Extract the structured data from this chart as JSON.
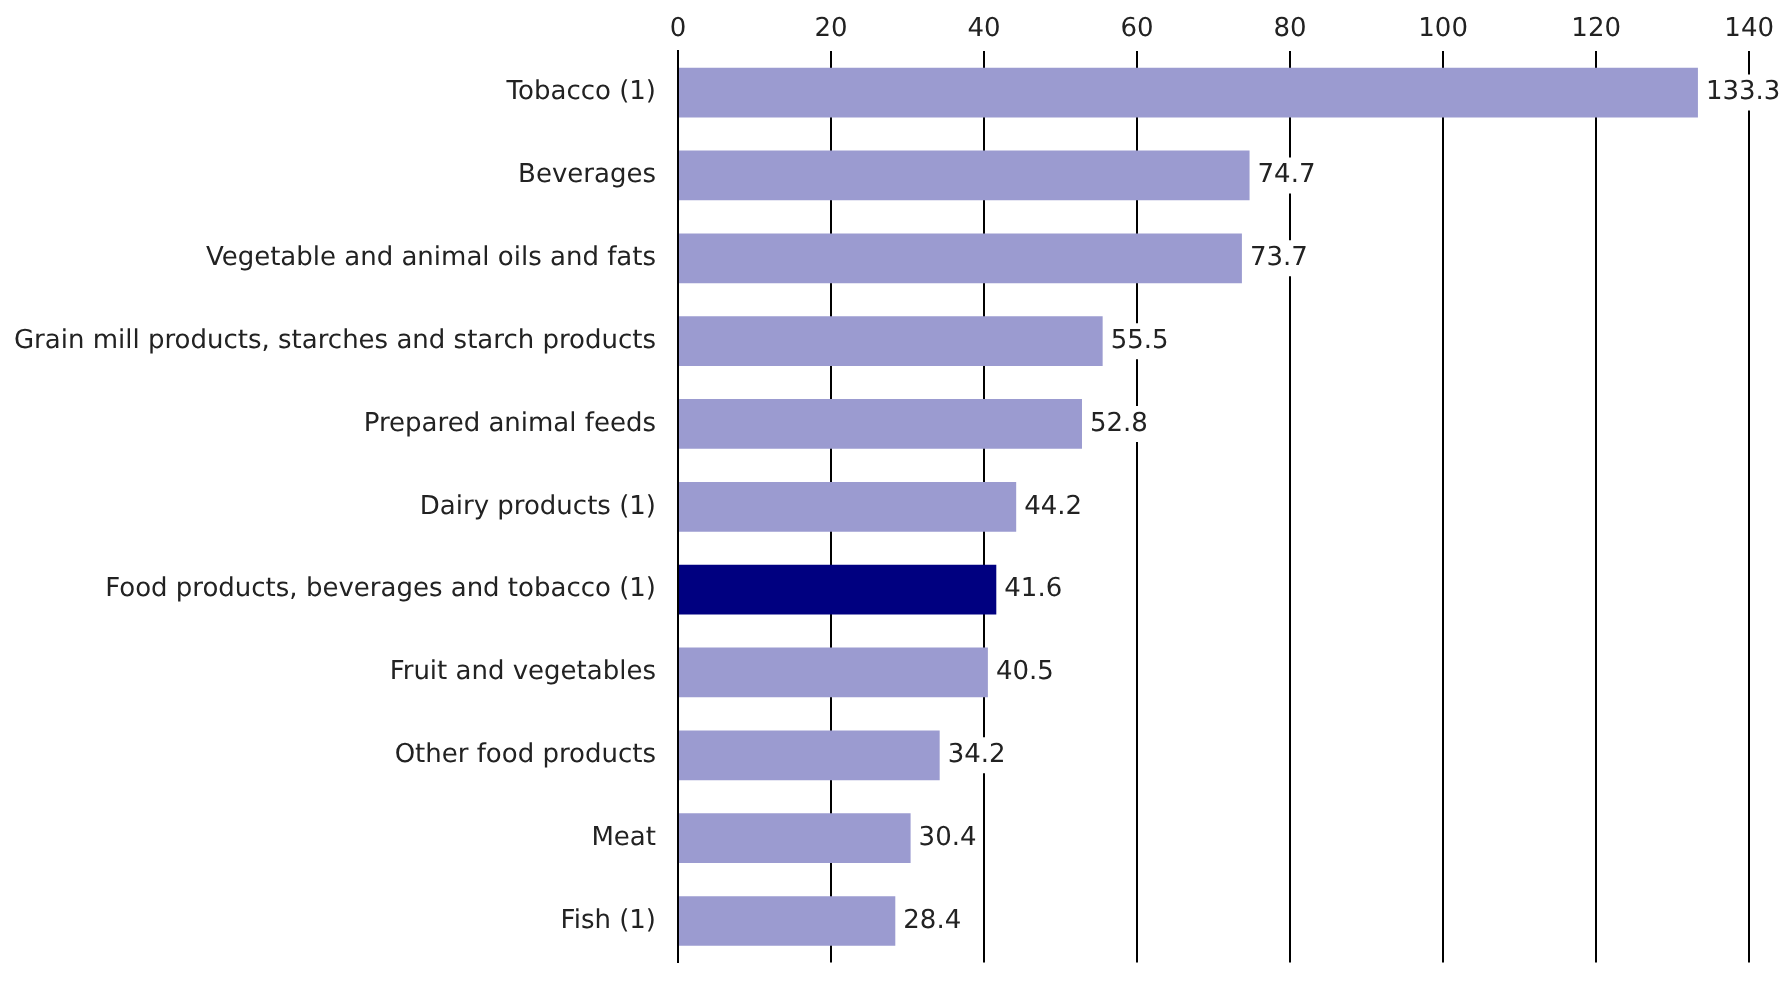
{
  "chart_data": {
    "type": "bar",
    "orientation": "horizontal",
    "categories": [
      "Tobacco (1)",
      "Beverages",
      "Vegetable and animal oils and fats",
      "Grain mill products, starches and starch products",
      "Prepared animal feeds",
      "Dairy products (1)",
      "Food products, beverages and tobacco (1)",
      "Fruit and vegetables",
      "Other food products",
      "Meat",
      "Fish (1)"
    ],
    "values": [
      133.3,
      74.7,
      73.7,
      55.5,
      52.8,
      44.2,
      41.6,
      40.5,
      34.2,
      30.4,
      28.4
    ],
    "colors": [
      "#9b9bd0",
      "#9b9bd0",
      "#9b9bd0",
      "#9b9bd0",
      "#9b9bd0",
      "#9b9bd0",
      "#000080",
      "#9b9bd0",
      "#9b9bd0",
      "#9b9bd0",
      "#9b9bd0"
    ],
    "xlim": [
      0,
      140
    ],
    "xticks": [
      0,
      20,
      40,
      60,
      80,
      100,
      120,
      140
    ],
    "grid": "x",
    "data_labels": true,
    "legend": false
  }
}
